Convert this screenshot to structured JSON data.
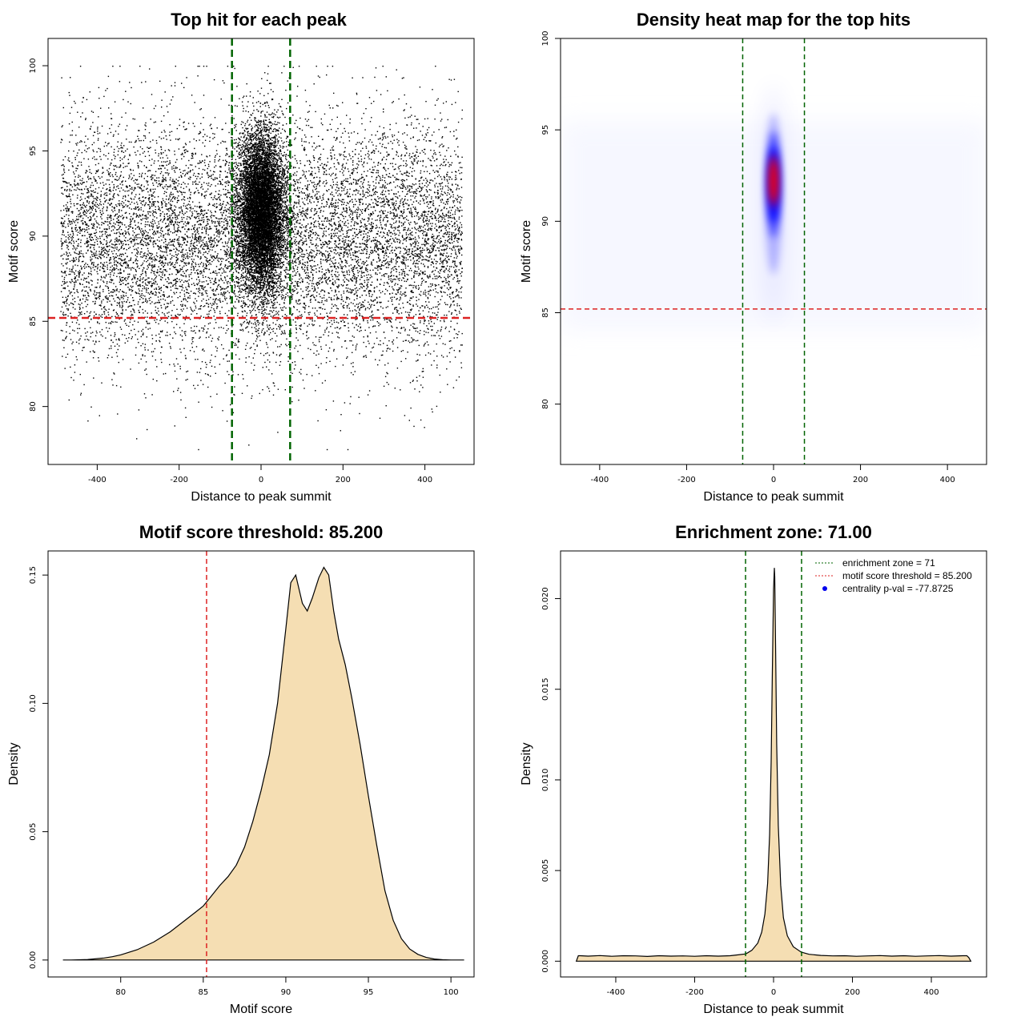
{
  "chart_data": [
    {
      "type": "scatter",
      "title": "Top hit for each peak",
      "xlabel": "Distance to peak summit",
      "ylabel": "Motif score",
      "xlim": [
        -520,
        520
      ],
      "ylim": [
        76.6,
        101.6
      ],
      "xticks": [
        -400,
        -200,
        0,
        200,
        400
      ],
      "xtick_labels": [
        "-400",
        "-200",
        "0",
        "200",
        "400"
      ],
      "yticks": [
        80,
        85,
        90,
        95,
        100
      ],
      "ytick_labels": [
        "80",
        "85",
        "90",
        "95",
        "100"
      ],
      "vlines": [
        -71,
        71
      ],
      "hline": 85.2,
      "point_distribution": {
        "background_x_range": [
          -490,
          490
        ],
        "background_score_mean": 89.8,
        "background_score_sd": 3.4,
        "central_x_sd": 28,
        "central_score_mean": 91.5,
        "central_score_sd": 2.3,
        "max_score": 100.0,
        "min_score": 77.5
      },
      "colors": {
        "points": "#000000",
        "enrichment_lines": "#006400",
        "threshold_line": "#dd2222"
      },
      "grid": false
    },
    {
      "type": "heatmap",
      "title": "Density heat map for the top hits",
      "xlabel": "Distance to peak summit",
      "ylabel": "Motif score",
      "xlim": [
        -490,
        490
      ],
      "ylim": [
        76.7,
        100.0
      ],
      "xticks": [
        -400,
        -200,
        0,
        200,
        400
      ],
      "xtick_labels": [
        "-400",
        "-200",
        "0",
        "200",
        "400"
      ],
      "yticks": [
        80,
        85,
        90,
        95,
        100
      ],
      "ytick_labels": [
        "80",
        "85",
        "90",
        "95",
        "100"
      ],
      "vlines": [
        -71,
        71
      ],
      "hline": 85.2,
      "density_peak": {
        "x": 0,
        "score": 92.0,
        "x_sd": 12,
        "score_sd": 2.6
      },
      "color_scale": [
        "#ffffff",
        "#0000ff",
        "#ff0000"
      ],
      "colors": {
        "enrichment_lines": "#006400",
        "threshold_line": "#dd2222"
      },
      "grid": false
    },
    {
      "type": "area",
      "title": "Motif score threshold: 85.200",
      "xlabel": "Motif score",
      "ylabel": "Density",
      "xlim": [
        75.6,
        101.4
      ],
      "ylim": [
        -0.0066,
        0.1594
      ],
      "xticks": [
        80,
        85,
        90,
        95,
        100
      ],
      "xtick_labels": [
        "80",
        "85",
        "90",
        "95",
        "100"
      ],
      "yticks": [
        0,
        0.05,
        0.1,
        0.15
      ],
      "ytick_labels": [
        "0.00",
        "0.05",
        "0.10",
        "0.15"
      ],
      "x": [
        76.5,
        77,
        78,
        79,
        79.5,
        80,
        81,
        82,
        83,
        84,
        84.5,
        85,
        85.5,
        86,
        86.5,
        87,
        87.5,
        88,
        88.5,
        89,
        89.5,
        90,
        90.3,
        90.6,
        91,
        91.3,
        91.6,
        92,
        92.3,
        92.6,
        92.9,
        93.2,
        93.6,
        94,
        94.5,
        95,
        95.5,
        96,
        96.5,
        97,
        97.5,
        98,
        98.5,
        99,
        99.5,
        100,
        100.8
      ],
      "y": [
        0.0,
        0.0,
        0.0002,
        0.0008,
        0.0013,
        0.002,
        0.004,
        0.007,
        0.011,
        0.016,
        0.0185,
        0.021,
        0.025,
        0.029,
        0.0325,
        0.037,
        0.044,
        0.054,
        0.066,
        0.08,
        0.1,
        0.129,
        0.147,
        0.15,
        0.139,
        0.136,
        0.141,
        0.149,
        0.153,
        0.15,
        0.136,
        0.125,
        0.115,
        0.102,
        0.084,
        0.064,
        0.045,
        0.027,
        0.0155,
        0.0083,
        0.0043,
        0.0022,
        0.001,
        0.0004,
        0.0001,
        0.0,
        0.0
      ],
      "vline": 85.2,
      "colors": {
        "fill": "#f5deb3",
        "outline": "#000000",
        "threshold_line": "#dd2222"
      },
      "grid": false
    },
    {
      "type": "area",
      "title": "Enrichment zone: 71.00",
      "xlabel": "Distance to peak summit",
      "ylabel": "Density",
      "xlim": [
        -540,
        540
      ],
      "ylim": [
        -0.00087,
        0.02263
      ],
      "xticks": [
        -400,
        -200,
        0,
        200,
        400
      ],
      "xtick_labels": [
        "-400",
        "-200",
        "0",
        "200",
        "400"
      ],
      "yticks": [
        0,
        0.005,
        0.01,
        0.015,
        0.02
      ],
      "ytick_labels": [
        "0.000",
        "0.005",
        "0.010",
        "0.015",
        "0.020"
      ],
      "x": [
        -500,
        -495,
        -490,
        -470,
        -440,
        -410,
        -380,
        -350,
        -320,
        -290,
        -260,
        -230,
        -200,
        -170,
        -140,
        -110,
        -90,
        -70,
        -55,
        -40,
        -30,
        -22,
        -15,
        -10,
        -6,
        -3,
        0,
        2,
        3,
        5,
        8,
        12,
        18,
        25,
        35,
        50,
        70,
        90,
        120,
        150,
        180,
        210,
        240,
        270,
        300,
        330,
        360,
        390,
        420,
        450,
        480,
        490,
        495,
        500
      ],
      "y": [
        0.0,
        0.0003,
        0.0003,
        0.00028,
        0.00031,
        0.00027,
        0.0003,
        0.00029,
        0.00026,
        0.0003,
        0.00028,
        0.00029,
        0.00027,
        0.0003,
        0.00028,
        0.0003,
        0.00035,
        0.0004,
        0.0006,
        0.001,
        0.0016,
        0.0026,
        0.0043,
        0.007,
        0.011,
        0.016,
        0.0205,
        0.0217,
        0.0212,
        0.0175,
        0.012,
        0.0075,
        0.0042,
        0.0024,
        0.0014,
        0.0008,
        0.0005,
        0.00038,
        0.00032,
        0.00029,
        0.0003,
        0.00027,
        0.00029,
        0.00031,
        0.00028,
        0.0003,
        0.00027,
        0.00029,
        0.00031,
        0.00028,
        0.0003,
        0.0003,
        0.0002,
        0.0
      ],
      "vlines": [
        -71,
        71
      ],
      "legend": {
        "placement": "top-right",
        "entries": [
          {
            "label": "enrichment zone = 71",
            "style": "dotted-line",
            "color": "#006400"
          },
          {
            "label": "motif score threshold = 85.200",
            "style": "dotted-line",
            "color": "#dd2222"
          },
          {
            "label": "centrality p-val = -77.8725",
            "style": "dot",
            "color": "#0000ee"
          }
        ]
      },
      "colors": {
        "fill": "#f5deb3",
        "outline": "#000000",
        "enrichment_lines": "#006400"
      },
      "grid": false
    }
  ]
}
